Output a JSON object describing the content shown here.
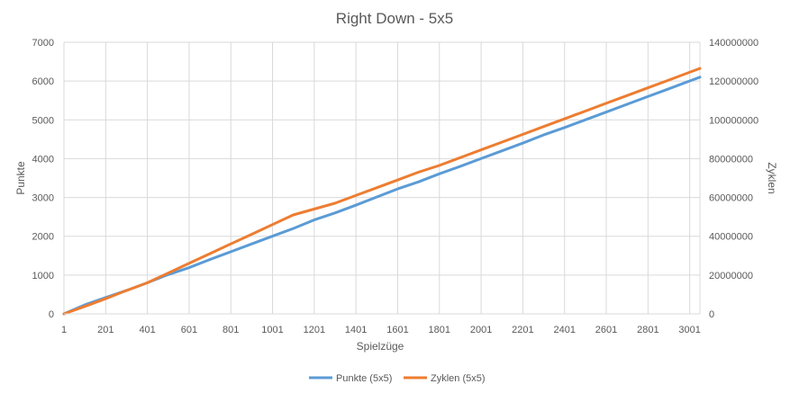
{
  "chart_data": {
    "type": "line",
    "title": "Right Down - 5x5",
    "xlabel": "Spielzüge",
    "ylabel_left": "Punkte",
    "ylabel_right": "Zyklen",
    "x_tick_labels": [
      "1",
      "201",
      "401",
      "601",
      "801",
      "1001",
      "1201",
      "1401",
      "1601",
      "1801",
      "2001",
      "2201",
      "2401",
      "2601",
      "2801",
      "3001"
    ],
    "xlim": [
      1,
      3050
    ],
    "ylim_left": [
      0,
      7000
    ],
    "ylim_right": [
      0,
      140000000
    ],
    "y_left_ticks": [
      "0",
      "1000",
      "2000",
      "3000",
      "4000",
      "5000",
      "6000",
      "7000"
    ],
    "y_right_ticks": [
      "0",
      "20000000",
      "40000000",
      "60000000",
      "80000000",
      "100000000",
      "120000000",
      "140000000"
    ],
    "grid": true,
    "legend_position": "bottom",
    "series": [
      {
        "name": "Punkte (5x5)",
        "axis": "left",
        "color": "#5B9BD5",
        "x": [
          1,
          100,
          200,
          300,
          400,
          500,
          600,
          700,
          800,
          900,
          1000,
          1100,
          1200,
          1300,
          1400,
          1500,
          1600,
          1700,
          1800,
          1900,
          2000,
          2100,
          2200,
          2300,
          2400,
          2500,
          2600,
          2700,
          2800,
          2900,
          3000,
          3050
        ],
        "values": [
          0,
          230,
          420,
          600,
          800,
          1010,
          1190,
          1400,
          1600,
          1800,
          2000,
          2200,
          2420,
          2600,
          2800,
          3010,
          3220,
          3400,
          3610,
          3800,
          4000,
          4200,
          4400,
          4610,
          4800,
          5000,
          5200,
          5400,
          5600,
          5800,
          6000,
          6100
        ]
      },
      {
        "name": "Zyklen (5x5)",
        "axis": "right",
        "color": "#ED7D31",
        "x": [
          1,
          100,
          200,
          300,
          400,
          500,
          600,
          700,
          800,
          900,
          1000,
          1100,
          1200,
          1300,
          1400,
          1500,
          1600,
          1700,
          1800,
          1900,
          2000,
          2100,
          2200,
          2300,
          2400,
          2500,
          2600,
          2700,
          2800,
          2900,
          3000,
          3050
        ],
        "values": [
          0,
          3800000,
          7800000,
          12000000,
          16000000,
          21000000,
          26000000,
          31000000,
          36000000,
          41000000,
          46000000,
          51000000,
          54000000,
          57000000,
          61000000,
          65000000,
          69000000,
          73000000,
          76500000,
          80500000,
          84500000,
          88500000,
          92500000,
          96500000,
          100500000,
          104500000,
          108500000,
          112500000,
          116500000,
          120500000,
          124500000,
          126500000
        ]
      }
    ]
  }
}
